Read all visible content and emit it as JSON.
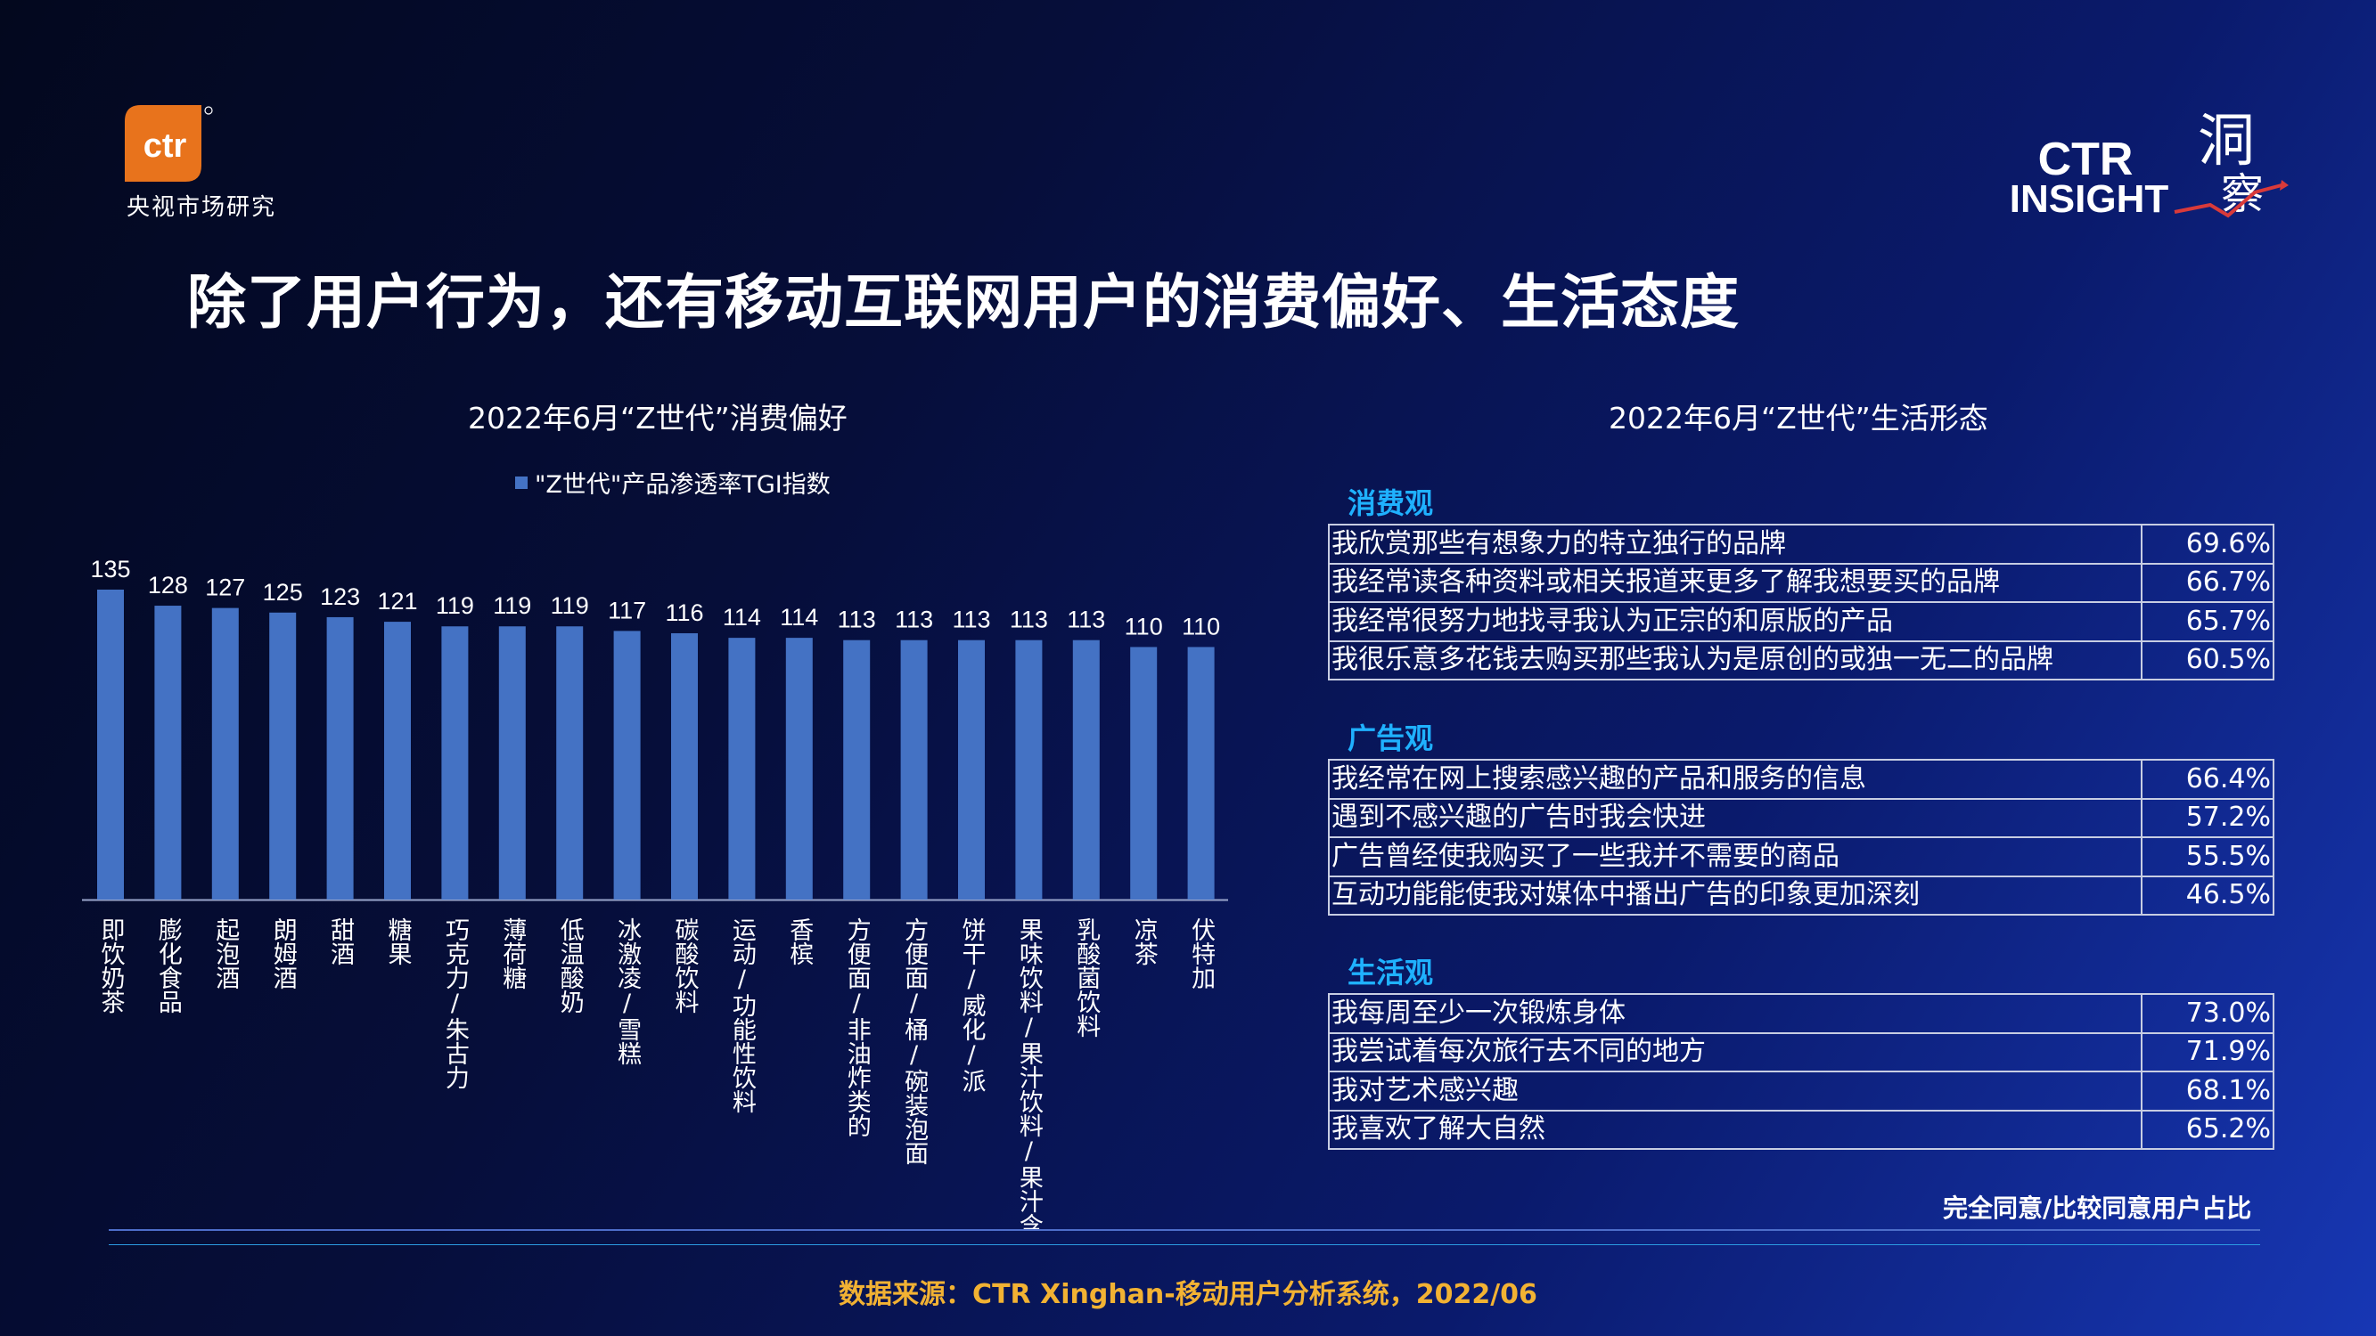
{
  "logos": {
    "ctr_mark": "ctr",
    "ctr_cn": "央视市场研究",
    "insight_top": "CTR",
    "insight_bottom": "INSIGHT",
    "insight_chars": "洞察"
  },
  "page_title": "除了用户行为，还有移动互联网用户的消费偏好、生活态度",
  "chart_data": {
    "type": "bar",
    "title": "2022年6月“Z世代”消费偏好",
    "series": [
      {
        "name": "\"Z世代\"产品渗透率TGI指数",
        "values": [
          135,
          128,
          127,
          125,
          123,
          121,
          119,
          119,
          119,
          117,
          116,
          114,
          114,
          113,
          113,
          113,
          113,
          113,
          110,
          110
        ]
      }
    ],
    "categories": [
      "即饮奶茶",
      "膨化食品",
      "起泡酒",
      "朗姆酒",
      "甜酒",
      "糖果",
      "巧克力/朱古力",
      "薄荷糖",
      "低温酸奶",
      "冰激凌/雪糕",
      "碳酸饮料",
      "运动/功能性饮料",
      "香槟",
      "方便面/非油炸类的",
      "方便面/桶/碗装泡面",
      "饼干/威化/派",
      "果味饮料/果汁饮料/果汁含…",
      "乳酸菌饮料",
      "凉茶",
      "伏特加"
    ],
    "ylim": [
      0,
      135
    ],
    "bar_color": "#4472c4",
    "grid": false,
    "legend": "top-center"
  },
  "table": {
    "title": "2022年6月“Z世代”生活形态",
    "note": "完全同意/比较同意用户占比",
    "sections": [
      {
        "label": "消费观",
        "rows": [
          {
            "text": "我欣赏那些有想象力的特立独行的品牌",
            "value": "69.6%"
          },
          {
            "text": "我经常读各种资料或相关报道来更多了解我想要买的品牌",
            "value": "66.7%"
          },
          {
            "text": "我经常很努力地找寻我认为正宗的和原版的产品",
            "value": "65.7%"
          },
          {
            "text": "我很乐意多花钱去购买那些我认为是原创的或独一无二的品牌",
            "value": "60.5%"
          }
        ]
      },
      {
        "label": "广告观",
        "rows": [
          {
            "text": "我经常在网上搜索感兴趣的产品和服务的信息",
            "value": "66.4%"
          },
          {
            "text": "遇到不感兴趣的广告时我会快进",
            "value": "57.2%"
          },
          {
            "text": "广告曾经使我购买了一些我并不需要的商品",
            "value": "55.5%"
          },
          {
            "text": "互动功能能使我对媒体中播出广告的印象更加深刻",
            "value": "46.5%"
          }
        ]
      },
      {
        "label": "生活观",
        "rows": [
          {
            "text": "我每周至少一次锻炼身体",
            "value": "73.0%"
          },
          {
            "text": "我尝试着每次旅行去不同的地方",
            "value": "71.9%"
          },
          {
            "text": "我对艺术感兴趣",
            "value": "68.1%"
          },
          {
            "text": "我喜欢了解大自然",
            "value": "65.2%"
          }
        ]
      }
    ]
  },
  "footer": {
    "source": "数据来源：CTR Xinghan-移动用户分析系统，2022/06"
  },
  "colors": {
    "accent_blue": "#1fb1ff",
    "source_orange": "#f2b233",
    "logo_orange": "#e8731c"
  }
}
